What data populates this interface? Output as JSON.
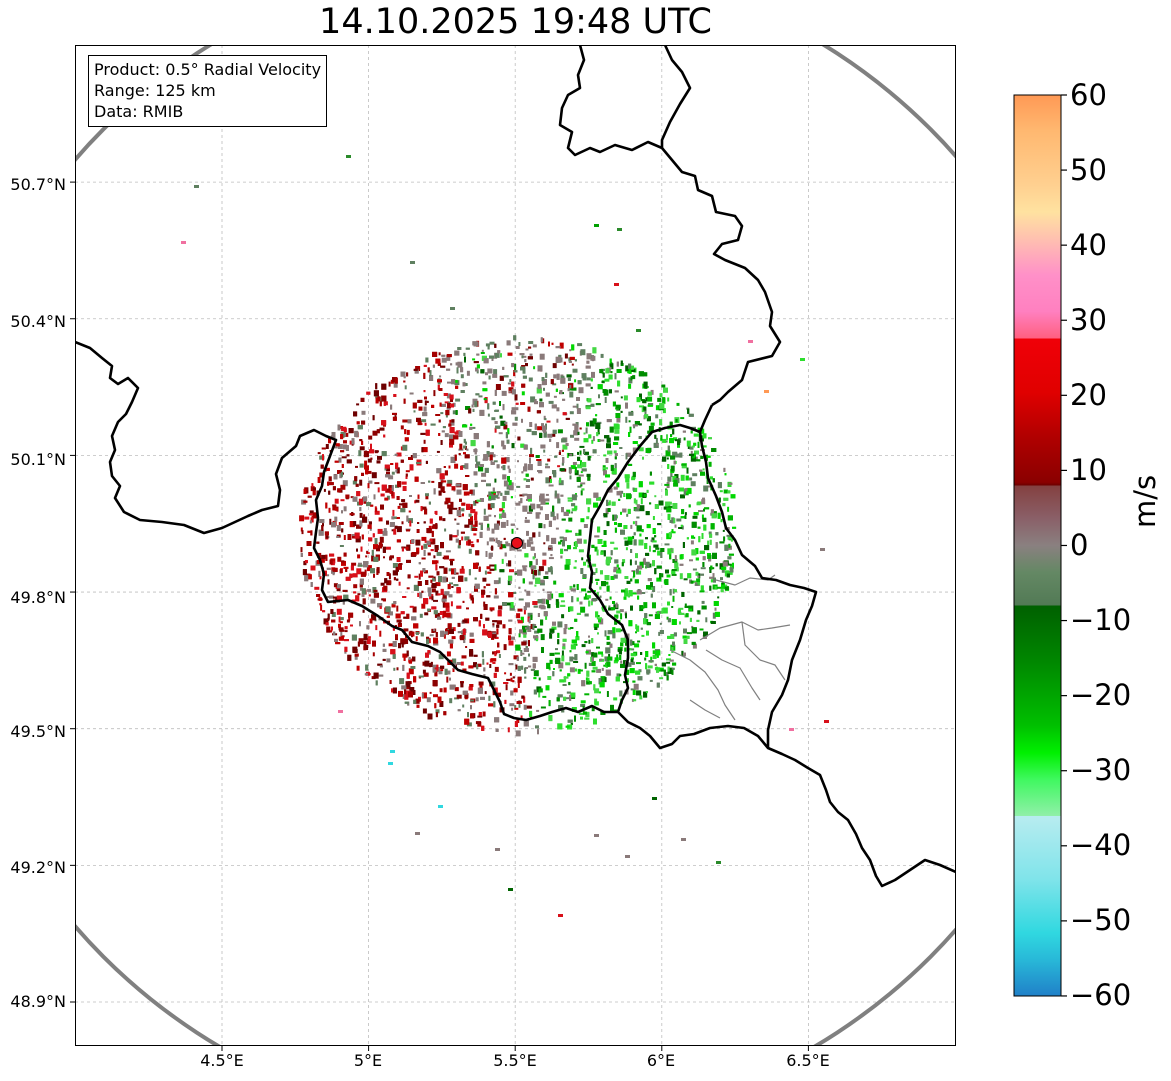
{
  "title": "14.10.2025 19:48 UTC",
  "info": {
    "product": "Product: 0.5° Radial Velocity",
    "range": "Range: 125 km",
    "data": "Data: RMIB"
  },
  "map": {
    "lon_ticks": [
      "4.5°E",
      "5°E",
      "5.5°E",
      "6°E",
      "6.5°E"
    ],
    "lat_ticks": [
      "50.7°N",
      "50.4°N",
      "50.1°N",
      "49.8°N",
      "49.5°N",
      "49.2°N",
      "48.9°N"
    ],
    "radar_site": {
      "lon": 5.5,
      "lat": 49.92,
      "color": "#e8101a"
    },
    "range_ring_color": "#808080",
    "border_color": "#000000"
  },
  "colorbar": {
    "unit": "m/s",
    "ticks": [
      "60",
      "50",
      "40",
      "30",
      "20",
      "10",
      "0",
      "−10",
      "−20",
      "−30",
      "−40",
      "−50",
      "−60"
    ],
    "range": [
      -60,
      60
    ]
  },
  "palette": {
    "approaching": [
      "#006400",
      "#008c00",
      "#00b400",
      "#00d800",
      "#2dde2d",
      "#44d844"
    ],
    "receding": [
      "#6e0000",
      "#8b0000",
      "#a50000",
      "#c00000",
      "#d8101a"
    ],
    "zero": "#8a7a7a",
    "zero_green": "#5f8060",
    "pink": "#f070a0",
    "cyan": "#30d8e0"
  }
}
